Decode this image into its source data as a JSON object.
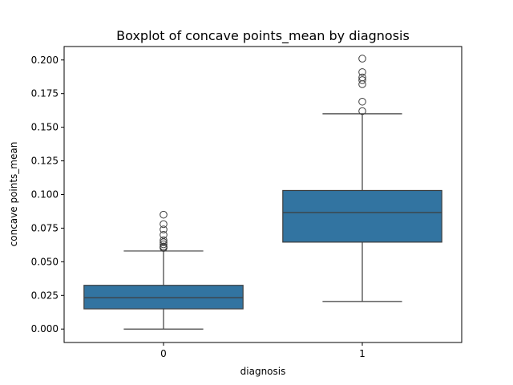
{
  "chart_data": {
    "type": "box",
    "title": "Boxplot of concave points_mean by diagnosis",
    "xlabel": "diagnosis",
    "ylabel": "concave points_mean",
    "ylim": [
      -0.01,
      0.21
    ],
    "y_ticks": [
      0.0,
      0.025,
      0.05,
      0.075,
      0.1,
      0.125,
      0.15,
      0.175,
      0.2
    ],
    "y_tick_labels": [
      "0.000",
      "0.025",
      "0.050",
      "0.075",
      "0.100",
      "0.125",
      "0.150",
      "0.175",
      "0.200"
    ],
    "categories": [
      "0",
      "1"
    ],
    "grid": false,
    "legend": "none",
    "box_color": "#3274a1",
    "line_color": "#3d3d3d",
    "boxes": [
      {
        "category": "0",
        "whisker_low": 0.0,
        "q1": 0.015,
        "median": 0.0233,
        "q3": 0.0325,
        "whisker_high": 0.058,
        "outliers": [
          0.0602,
          0.0607,
          0.0614,
          0.063,
          0.0645,
          0.066,
          0.07,
          0.074,
          0.078,
          0.085
        ]
      },
      {
        "category": "1",
        "whisker_low": 0.0205,
        "q1": 0.0646,
        "median": 0.0866,
        "q3": 0.103,
        "whisker_high": 0.16,
        "outliers": [
          0.162,
          0.169,
          0.182,
          0.185,
          0.187,
          0.191,
          0.201
        ]
      }
    ]
  }
}
